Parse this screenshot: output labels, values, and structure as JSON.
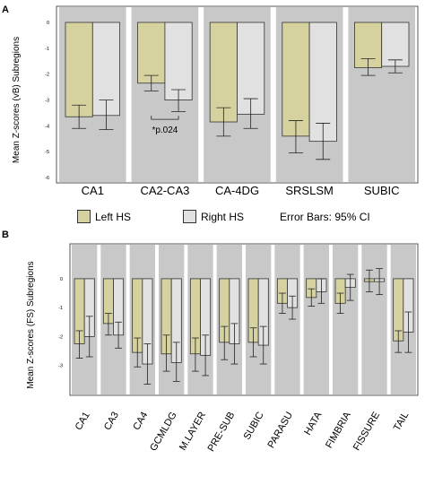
{
  "colors": {
    "left": "#d6d2a0",
    "right": "#e1e1e1",
    "panel_bg": "#c8c8c8"
  },
  "legend": {
    "left_label": "Left HS",
    "right_label": "Right HS",
    "note": "Error Bars: 95% CI"
  },
  "chart_data": [
    {
      "panel": "A",
      "type": "bar",
      "ylabel": "Mean Z-scores (vB) Subregions",
      "ylim": [
        -6,
        0
      ],
      "yticks": [
        "0",
        "-1",
        "-2",
        "-3",
        "-4",
        "-5",
        "-6"
      ],
      "categories": [
        "CA1",
        "CA2-CA3",
        "CA-4DG",
        "SRSLSM",
        "SUBIC"
      ],
      "series": [
        {
          "name": "Left HS",
          "values": [
            -3.65,
            -2.35,
            -3.85,
            -4.4,
            -1.75
          ],
          "ci_low": [
            -4.1,
            -2.65,
            -4.4,
            -5.05,
            -2.05
          ],
          "ci_high": [
            -3.2,
            -2.05,
            -3.3,
            -3.8,
            -1.4
          ]
        },
        {
          "name": "Right HS",
          "values": [
            -3.6,
            -3.0,
            -3.55,
            -4.6,
            -1.7
          ],
          "ci_low": [
            -4.15,
            -3.45,
            -4.1,
            -5.3,
            -1.95
          ],
          "ci_high": [
            -3.0,
            -2.6,
            -2.95,
            -3.9,
            -1.45
          ]
        }
      ],
      "annotation": {
        "text": "*p.024",
        "category": "CA2-CA3"
      }
    },
    {
      "panel": "B",
      "type": "bar",
      "ylabel": "Mean Z-scores (FS) Subregions",
      "ylim": [
        -3.6,
        0.4
      ],
      "yticks": [
        "0",
        "-1",
        "-2",
        "-3"
      ],
      "categories": [
        "CA1",
        "CA3",
        "CA4",
        "GCMLDG",
        "M.LAYER",
        "PRE-SUB",
        "SUBIC",
        "PARASU",
        "HATA",
        "FIMBRIA",
        "FISSURE",
        "TAIL"
      ],
      "series": [
        {
          "name": "Left HS",
          "values": [
            -2.25,
            -1.55,
            -2.55,
            -2.6,
            -2.6,
            -2.2,
            -2.2,
            -0.85,
            -0.65,
            -0.85,
            -0.1,
            -2.15
          ],
          "ci_low": [
            -2.75,
            -1.95,
            -3.05,
            -3.2,
            -3.2,
            -2.8,
            -2.7,
            -1.2,
            -0.95,
            -1.2,
            -0.45,
            -2.55
          ],
          "ci_high": [
            -1.8,
            -1.2,
            -2.05,
            -1.95,
            -2.05,
            -1.65,
            -1.7,
            -0.5,
            -0.35,
            -0.5,
            0.3,
            -1.8
          ]
        },
        {
          "name": "Right HS",
          "values": [
            -2.0,
            -1.95,
            -2.95,
            -2.9,
            -2.65,
            -2.25,
            -2.3,
            -1.0,
            -0.45,
            -0.3,
            -0.1,
            -1.85
          ],
          "ci_low": [
            -2.7,
            -2.4,
            -3.65,
            -3.55,
            -3.35,
            -2.95,
            -2.95,
            -1.4,
            -0.85,
            -0.75,
            -0.55,
            -2.55
          ],
          "ci_high": [
            -1.3,
            -1.5,
            -2.25,
            -2.2,
            -1.95,
            -1.55,
            -1.65,
            -0.6,
            0.0,
            0.15,
            0.35,
            -1.15
          ]
        }
      ]
    }
  ],
  "panel_labels": [
    "A",
    "B"
  ]
}
